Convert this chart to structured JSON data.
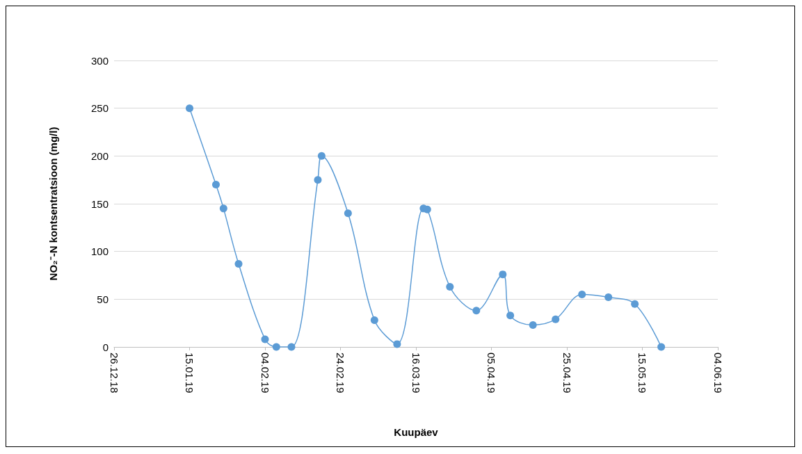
{
  "chart_data": {
    "type": "line",
    "xlabel": "Kuupäev",
    "ylabel": "NO₂⁻-N kontsentratsioon (mg/l)",
    "x": [
      "2019-01-15",
      "2019-01-22",
      "2019-01-24",
      "2019-01-28",
      "2019-02-04",
      "2019-02-07",
      "2019-02-11",
      "2019-02-18",
      "2019-02-19",
      "2019-02-26",
      "2019-03-05",
      "2019-03-11",
      "2019-03-18",
      "2019-03-19",
      "2019-03-25",
      "2019-04-01",
      "2019-04-08",
      "2019-04-10",
      "2019-04-16",
      "2019-04-22",
      "2019-04-29",
      "2019-05-06",
      "2019-05-13",
      "2019-05-20"
    ],
    "series": [
      {
        "color": "#5b9bd5",
        "values": [
          250,
          170,
          145,
          87,
          8,
          0,
          0,
          175,
          200,
          140,
          28,
          3,
          145,
          144,
          63,
          38,
          76,
          33,
          23,
          29,
          55,
          52,
          45,
          0
        ]
      }
    ],
    "xlim": [
      "2018-12-26",
      "2019-06-04"
    ],
    "xticks": [
      {
        "value": "2018-12-26",
        "label": "26.12.18"
      },
      {
        "value": "2019-01-15",
        "label": "15.01.19"
      },
      {
        "value": "2019-02-04",
        "label": "04.02.19"
      },
      {
        "value": "2019-02-24",
        "label": "24.02.19"
      },
      {
        "value": "2019-03-16",
        "label": "16.03.19"
      },
      {
        "value": "2019-04-05",
        "label": "05.04.19"
      },
      {
        "value": "2019-04-25",
        "label": "25.04.19"
      },
      {
        "value": "2019-05-15",
        "label": "15.05.19"
      },
      {
        "value": "2019-06-04",
        "label": "04.06.19"
      }
    ],
    "ylim": [
      0,
      300
    ],
    "yticks": [
      0,
      50,
      100,
      150,
      200,
      250,
      300
    ],
    "grid": "y",
    "marker": "circle",
    "line_style": "solid"
  }
}
